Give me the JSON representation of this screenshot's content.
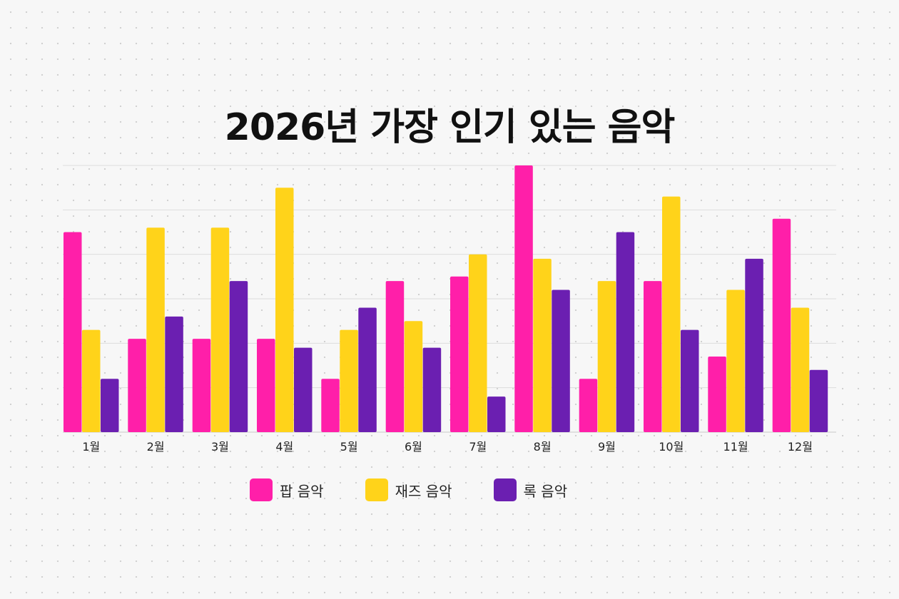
{
  "chart_data": {
    "type": "bar",
    "title": "2026년 가장 인기 있는 음악",
    "categories": [
      "1월",
      "2월",
      "3월",
      "4월",
      "5월",
      "6월",
      "7월",
      "8월",
      "9월",
      "10월",
      "11월",
      "12월"
    ],
    "series": [
      {
        "name": "팝 음악",
        "color": "#ff1fa9",
        "values": [
          45,
          21,
          21,
          21,
          12,
          34,
          35,
          60,
          12,
          34,
          17,
          48
        ]
      },
      {
        "name": "재즈 음악",
        "color": "#ffd31a",
        "values": [
          23,
          46,
          46,
          55,
          23,
          25,
          40,
          39,
          34,
          53,
          32,
          28
        ]
      },
      {
        "name": "록 음악",
        "color": "#6b1fb1",
        "values": [
          12,
          26,
          34,
          19,
          28,
          19,
          8,
          32,
          45,
          23,
          39,
          14
        ]
      }
    ],
    "ylim": [
      0,
      60
    ],
    "grid": true,
    "legend_position": "bottom"
  }
}
